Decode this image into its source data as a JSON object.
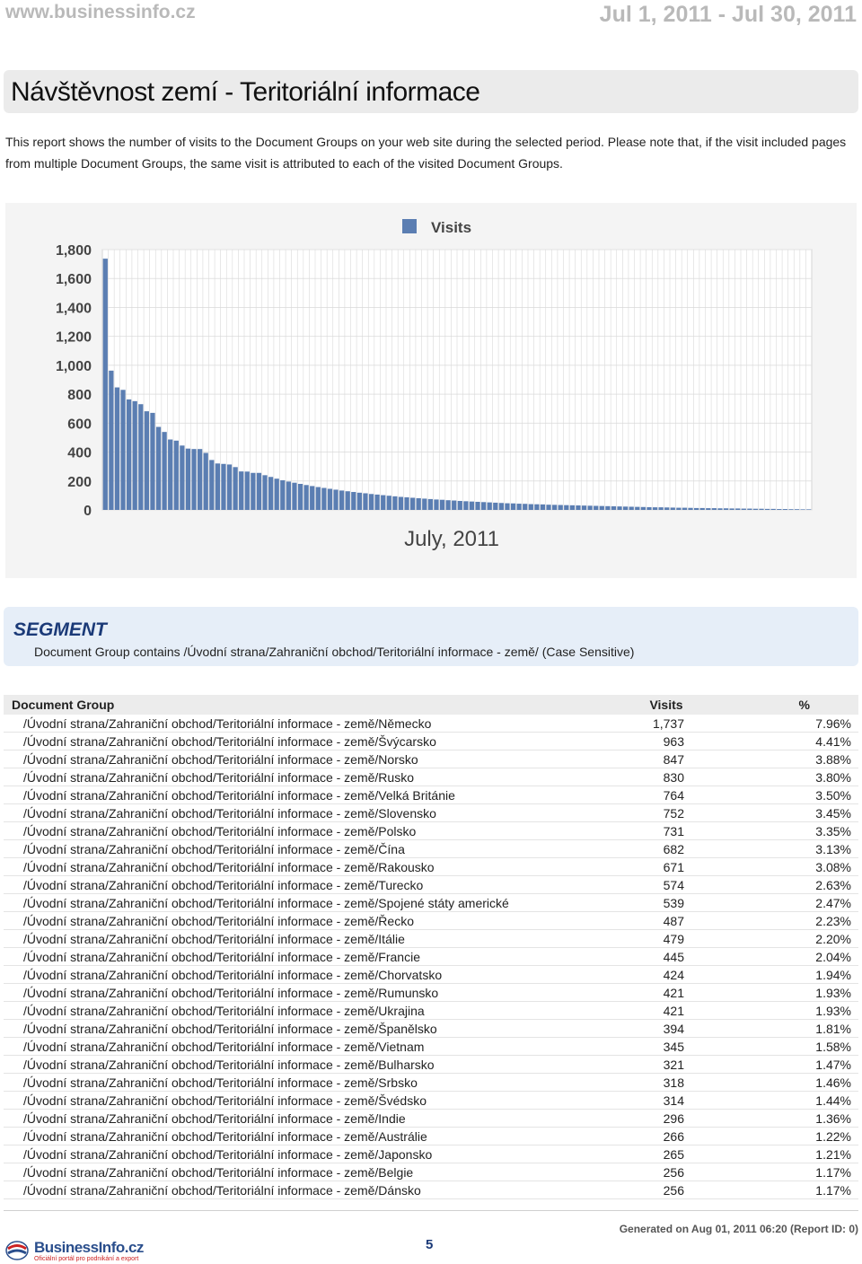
{
  "header": {
    "site": "www.businessinfo.cz",
    "date_range": "Jul 1, 2011 - Jul 30, 2011"
  },
  "title": "Návštěvnost zemí - Teritoriální informace",
  "intro": "This report shows the number of visits to the Document Groups on your web site during the selected period. Please note that, if the visit included pages from multiple Document Groups, the same visit is attributed to each of the visited Document Groups.",
  "chart_data": {
    "type": "bar",
    "legend": [
      "Visits"
    ],
    "legend_position": "top-center",
    "xlabel": "July, 2011",
    "ylim": [
      0,
      1800
    ],
    "yticks": [
      "0",
      "200",
      "400",
      "600",
      "800",
      "1,000",
      "1,200",
      "1,400",
      "1,600",
      "1,800"
    ],
    "grid": true,
    "bar_color": "#5b7eb2",
    "series": [
      {
        "values": [
          1737,
          963,
          847,
          830,
          764,
          752,
          731,
          682,
          671,
          574,
          539,
          487,
          479,
          445,
          424,
          421,
          421,
          394,
          345,
          321,
          318,
          314,
          296,
          266,
          265,
          256,
          256,
          240,
          228,
          216,
          205,
          196,
          188,
          180,
          172,
          165,
          158,
          152,
          146,
          140,
          134,
          129,
          124,
          119,
          115,
          110,
          106,
          102,
          98,
          94,
          90,
          87,
          84,
          81,
          78,
          75,
          72,
          70,
          67,
          65,
          62,
          60,
          58,
          56,
          54,
          52,
          50,
          48,
          46,
          45,
          43,
          42,
          40,
          39,
          38,
          36,
          35,
          34,
          33,
          32,
          31,
          30,
          29,
          28,
          27,
          26,
          25,
          24,
          23,
          22,
          21,
          20,
          19,
          18,
          18,
          17,
          16,
          15,
          15,
          14,
          13,
          13,
          12,
          12,
          11,
          11,
          10,
          10,
          9,
          9,
          8,
          8,
          7,
          7,
          6,
          6,
          5,
          5,
          4,
          4
        ]
      }
    ]
  },
  "segment": {
    "title": "SEGMENT",
    "text": "Document Group contains /Úvodní strana/Zahraniční obchod/Teritoriální informace - země/ (Case Sensitive)"
  },
  "table": {
    "headers": [
      "Document Group",
      "Visits",
      "%"
    ],
    "rows": [
      [
        "/Úvodní strana/Zahraniční obchod/Teritoriální informace - země/Německo",
        "1,737",
        "7.96%"
      ],
      [
        "/Úvodní strana/Zahraniční obchod/Teritoriální informace - země/Švýcarsko",
        "963",
        "4.41%"
      ],
      [
        "/Úvodní strana/Zahraniční obchod/Teritoriální informace - země/Norsko",
        "847",
        "3.88%"
      ],
      [
        "/Úvodní strana/Zahraniční obchod/Teritoriální informace - země/Rusko",
        "830",
        "3.80%"
      ],
      [
        "/Úvodní strana/Zahraniční obchod/Teritoriální informace - země/Velká Británie",
        "764",
        "3.50%"
      ],
      [
        "/Úvodní strana/Zahraniční obchod/Teritoriální informace - země/Slovensko",
        "752",
        "3.45%"
      ],
      [
        "/Úvodní strana/Zahraniční obchod/Teritoriální informace - země/Polsko",
        "731",
        "3.35%"
      ],
      [
        "/Úvodní strana/Zahraniční obchod/Teritoriální informace - země/Čína",
        "682",
        "3.13%"
      ],
      [
        "/Úvodní strana/Zahraniční obchod/Teritoriální informace - země/Rakousko",
        "671",
        "3.08%"
      ],
      [
        "/Úvodní strana/Zahraniční obchod/Teritoriální informace - země/Turecko",
        "574",
        "2.63%"
      ],
      [
        "/Úvodní strana/Zahraniční obchod/Teritoriální informace - země/Spojené státy americké",
        "539",
        "2.47%"
      ],
      [
        "/Úvodní strana/Zahraniční obchod/Teritoriální informace - země/Řecko",
        "487",
        "2.23%"
      ],
      [
        "/Úvodní strana/Zahraniční obchod/Teritoriální informace - země/Itálie",
        "479",
        "2.20%"
      ],
      [
        "/Úvodní strana/Zahraniční obchod/Teritoriální informace - země/Francie",
        "445",
        "2.04%"
      ],
      [
        "/Úvodní strana/Zahraniční obchod/Teritoriální informace - země/Chorvatsko",
        "424",
        "1.94%"
      ],
      [
        "/Úvodní strana/Zahraniční obchod/Teritoriální informace - země/Rumunsko",
        "421",
        "1.93%"
      ],
      [
        "/Úvodní strana/Zahraniční obchod/Teritoriální informace - země/Ukrajina",
        "421",
        "1.93%"
      ],
      [
        "/Úvodní strana/Zahraniční obchod/Teritoriální informace - země/Španělsko",
        "394",
        "1.81%"
      ],
      [
        "/Úvodní strana/Zahraniční obchod/Teritoriální informace - země/Vietnam",
        "345",
        "1.58%"
      ],
      [
        "/Úvodní strana/Zahraniční obchod/Teritoriální informace - země/Bulharsko",
        "321",
        "1.47%"
      ],
      [
        "/Úvodní strana/Zahraniční obchod/Teritoriální informace - země/Srbsko",
        "318",
        "1.46%"
      ],
      [
        "/Úvodní strana/Zahraniční obchod/Teritoriální informace - země/Švédsko",
        "314",
        "1.44%"
      ],
      [
        "/Úvodní strana/Zahraniční obchod/Teritoriální informace - země/Indie",
        "296",
        "1.36%"
      ],
      [
        "/Úvodní strana/Zahraniční obchod/Teritoriální informace - země/Austrálie",
        "266",
        "1.22%"
      ],
      [
        "/Úvodní strana/Zahraniční obchod/Teritoriální informace - země/Japonsko",
        "265",
        "1.21%"
      ],
      [
        "/Úvodní strana/Zahraniční obchod/Teritoriální informace - země/Belgie",
        "256",
        "1.17%"
      ],
      [
        "/Úvodní strana/Zahraniční obchod/Teritoriální informace - země/Dánsko",
        "256",
        "1.17%"
      ]
    ]
  },
  "footer": {
    "logo_name": "BusinessInfo.cz",
    "logo_tagline": "Oficiální portál pro podnikání a export",
    "page_number": "5",
    "generated": "Generated on Aug 01, 2011 06:20 (Report ID: 0)"
  }
}
